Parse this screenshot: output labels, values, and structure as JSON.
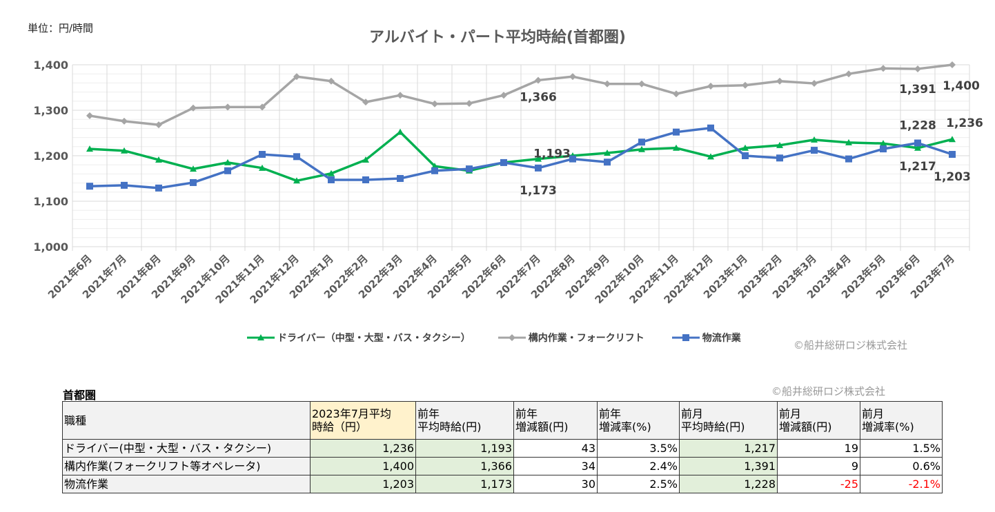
{
  "unit_label": "単位：円/時間",
  "copyright": "©船井総研ロジ株式会社",
  "chart_data": {
    "type": "line",
    "title": "アルバイト・パート平均時給(首都圏)",
    "ylim": [
      1000,
      1400
    ],
    "yticks": [
      "1,000",
      "1,100",
      "1,200",
      "1,300",
      "1,400"
    ],
    "grid": true,
    "legend_position": "bottom",
    "categories": [
      "2021年6月",
      "2021年7月",
      "2021年8月",
      "2021年9月",
      "2021年10月",
      "2021年11月",
      "2021年12月",
      "2022年1月",
      "2022年2月",
      "2022年3月",
      "2022年4月",
      "2022年5月",
      "2022年6月",
      "2022年7月",
      "2022年8月",
      "2022年9月",
      "2022年10月",
      "2022年11月",
      "2022年12月",
      "2023年1月",
      "2023年2月",
      "2023年3月",
      "2023年4月",
      "2023年5月",
      "2023年6月",
      "2023年7月"
    ],
    "series": [
      {
        "name": "ドライバー（中型・大型・バス・タクシー）",
        "color": "#00b050",
        "marker": "triangle",
        "values": [
          1215,
          1211,
          1191,
          1171,
          1185,
          1173,
          1145,
          1161,
          1191,
          1252,
          1177,
          1167,
          1185,
          1193,
          1200,
          1206,
          1214,
          1217,
          1198,
          1217,
          1223,
          1235,
          1229,
          1227,
          1217,
          1236
        ]
      },
      {
        "name": "構内作業・フォークリフト",
        "color": "#a5a5a5",
        "marker": "diamond",
        "values": [
          1288,
          1276,
          1268,
          1305,
          1307,
          1307,
          1374,
          1364,
          1318,
          1333,
          1314,
          1315,
          1333,
          1366,
          1374,
          1358,
          1358,
          1336,
          1353,
          1355,
          1364,
          1359,
          1380,
          1392,
          1391,
          1400
        ]
      },
      {
        "name": "物流作業",
        "color": "#4472c4",
        "marker": "star",
        "values": [
          1133,
          1135,
          1129,
          1141,
          1167,
          1203,
          1198,
          1147,
          1147,
          1150,
          1167,
          1171,
          1185,
          1173,
          1193,
          1186,
          1230,
          1252,
          1261,
          1200,
          1195,
          1212,
          1193,
          1215,
          1228,
          1203
        ]
      }
    ],
    "data_labels": [
      {
        "series": 1,
        "index": 13,
        "text": "1,366"
      },
      {
        "series": 0,
        "index": 13,
        "text": "1,193"
      },
      {
        "series": 2,
        "index": 13,
        "text": "1,173"
      },
      {
        "series": 1,
        "index": 24,
        "text": "1,391"
      },
      {
        "series": 2,
        "index": 24,
        "text": "1,228"
      },
      {
        "series": 0,
        "index": 24,
        "text": "1,217"
      },
      {
        "series": 1,
        "index": 25,
        "text": "1,400"
      },
      {
        "series": 0,
        "index": 25,
        "text": "1,236"
      },
      {
        "series": 2,
        "index": 25,
        "text": "1,203"
      }
    ]
  },
  "table": {
    "caption": "首都圏",
    "headers": [
      "職種",
      "2023年7月平均\n時給（円）",
      "前年\n平均時給(円)",
      "前年\n増減額(円)",
      "前年\n増減率(%)",
      "前月\n平均時給(円)",
      "前月\n増減額(円)",
      "前月\n増減率(%)"
    ],
    "rows": [
      [
        "ドライバー(中型・大型・バス・タクシー)",
        "1,236",
        "1,193",
        "43",
        "3.5%",
        "1,217",
        "19",
        "1.5%"
      ],
      [
        "構内作業(フォークリフト等オペレータ)",
        "1,400",
        "1,366",
        "34",
        "2.4%",
        "1,391",
        "9",
        "0.6%"
      ],
      [
        "物流作業",
        "1,203",
        "1,173",
        "30",
        "2.5%",
        "1,228",
        "-25",
        "-2.1%"
      ]
    ]
  }
}
